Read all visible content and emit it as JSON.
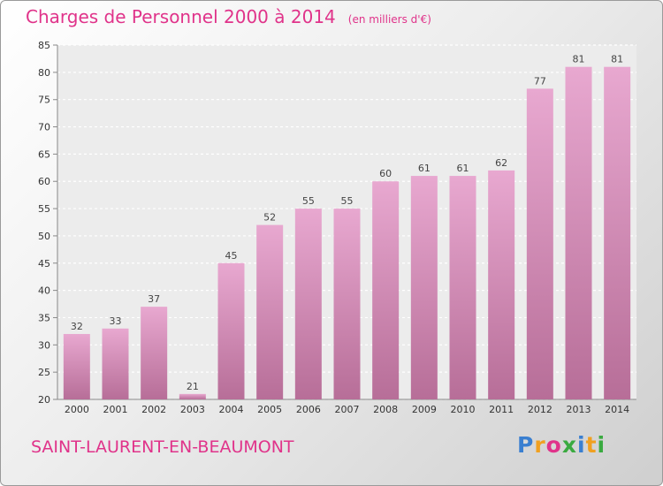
{
  "title": "Charges de Personnel 2000 à 2014",
  "unit": "(en milliers d'€)",
  "place": "SAINT-LAURENT-EN-BEAUMONT",
  "logo": {
    "letters": [
      "P",
      "r",
      "o",
      "x",
      "i",
      "t",
      "i"
    ],
    "colors": [
      "#3a7fd0",
      "#f0a020",
      "#e0338a",
      "#3aaa40",
      "#3a7fd0",
      "#f0a020",
      "#3aaa40"
    ]
  },
  "colors": {
    "bar": "#d98aba",
    "bar_light": "#e8a8d0",
    "bar_dark": "#b76e98",
    "text": "#e0338a"
  },
  "chart_data": {
    "type": "bar",
    "categories": [
      "2000",
      "2001",
      "2002",
      "2003",
      "2004",
      "2005",
      "2006",
      "2007",
      "2008",
      "2009",
      "2010",
      "2011",
      "2012",
      "2013",
      "2014"
    ],
    "values": [
      32,
      33,
      37,
      21,
      45,
      52,
      55,
      55,
      60,
      61,
      61,
      62,
      77,
      81,
      81
    ],
    "ylim": [
      20,
      85
    ],
    "yticks": [
      20,
      25,
      30,
      35,
      40,
      45,
      50,
      55,
      60,
      65,
      70,
      75,
      80,
      85
    ],
    "grid": true
  }
}
